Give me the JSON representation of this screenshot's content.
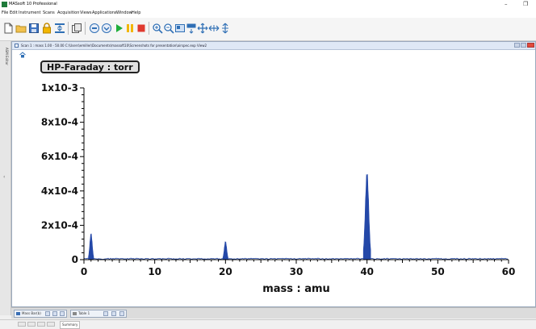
{
  "app": {
    "title": "MASsoft 10 Professional",
    "minimize_glyph": "–",
    "maximize_glyph": "❐"
  },
  "menu": [
    "File",
    "Edit",
    "Instrument",
    "Scans",
    "Acquisition",
    "Views",
    "Applications",
    "Window",
    "Help"
  ],
  "toolbar": {
    "icons": [
      "new-file-icon",
      "open-folder-icon",
      "save-icon",
      "lock-icon",
      "align-icon",
      "copy-icon",
      "scan-stop-icon",
      "scan-step-icon",
      "play-icon",
      "pause-icon",
      "stop-icon",
      "zoom-in-icon",
      "zoom-out-icon",
      "zoom-box-icon",
      "zoom-fit-icon",
      "pan-icon",
      "expand-horizontal-icon",
      "expand-vertical-icon"
    ],
    "colors": {
      "play": "#1fae3a",
      "pause": "#f2b600",
      "stop": "#e03a2f",
      "blue": "#2f6fb5"
    }
  },
  "left_strip": {
    "label": "ASM Editor"
  },
  "document": {
    "title": "Scan 1 : mass 1.00 - 50.00 C:\\Users\\emiller\\Documents\\massoft10\\Screenshots for presentation\\airspec.exp View2",
    "channel_label": "HP-Faraday : torr"
  },
  "chart_data": {
    "type": "line",
    "xlabel": "mass : amu",
    "ylabel": "",
    "xlim": [
      0,
      60
    ],
    "ylim": [
      0,
      0.001
    ],
    "x_ticks": [
      0,
      10,
      20,
      30,
      40,
      50,
      60
    ],
    "x_tick_labels": [
      "0",
      "10",
      "20",
      "30",
      "40",
      "50",
      "60"
    ],
    "y_ticks": [
      0,
      0.0002,
      0.0004,
      0.0006,
      0.0008,
      0.001
    ],
    "y_tick_labels": [
      "0",
      "2x10-4",
      "4x10-4",
      "6x10-4",
      "8x10-4",
      "1x10-3"
    ],
    "color": "#2448a8",
    "peaks": [
      {
        "mass": 1.0,
        "value": 0.000155
      },
      {
        "mass": 20.0,
        "value": 0.000108
      },
      {
        "mass": 40.0,
        "value": 0.00052
      }
    ]
  },
  "tabs": [
    {
      "label": "Mass Bar(b)"
    },
    {
      "label": "Table 1"
    }
  ],
  "status": {
    "text": "Summary"
  }
}
